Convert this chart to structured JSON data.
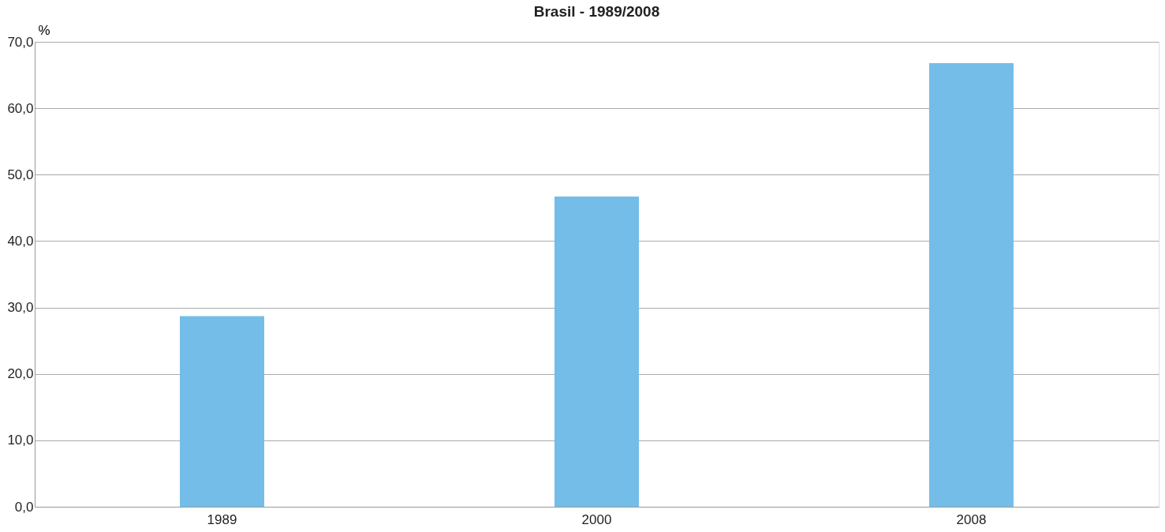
{
  "chart_data": {
    "type": "bar",
    "title": "Brasil - 1989/2008",
    "ylabel": "%",
    "categories": [
      "1989",
      "2000",
      "2008"
    ],
    "series": [
      {
        "color": "#74bde8",
        "values": [
          28.7,
          46.7,
          66.8
        ]
      }
    ],
    "ylim": [
      0,
      70
    ],
    "yticks": [
      {
        "value": 0,
        "label": "0,0"
      },
      {
        "value": 10,
        "label": "10,0"
      },
      {
        "value": 20,
        "label": "20,0"
      },
      {
        "value": 30,
        "label": "30,0"
      },
      {
        "value": 40,
        "label": "40,0"
      },
      {
        "value": 50,
        "label": "50,0"
      },
      {
        "value": 60,
        "label": "60,0"
      },
      {
        "value": 70,
        "label": "70,0"
      }
    ],
    "grid": "y",
    "legend": false
  }
}
